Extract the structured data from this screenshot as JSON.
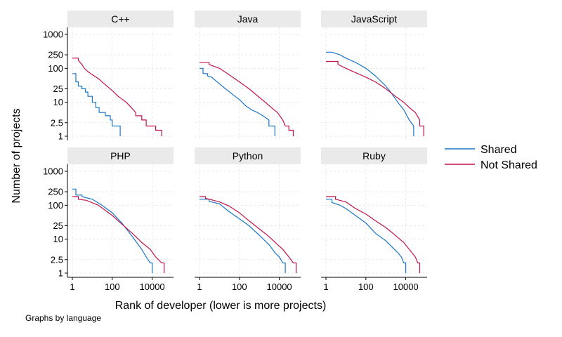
{
  "chart_data": {
    "type": "line",
    "x_scale": "log",
    "y_scale": "log",
    "xlim": [
      1,
      100000
    ],
    "ylim": [
      1,
      1000
    ],
    "xlabel": "Rank of developer (lower is more projects)",
    "ylabel": "Number of projects",
    "note": "Graphs by language",
    "x_ticks": [
      1,
      100,
      10000
    ],
    "x_tick_labels": [
      "1",
      "100",
      "10000"
    ],
    "y_ticks": [
      1,
      2.5,
      10,
      25,
      100,
      250,
      1000
    ],
    "y_tick_labels": [
      "1",
      "2.5",
      "10",
      "25",
      "100",
      "250",
      "1000"
    ],
    "legend": {
      "placement": "right",
      "entries": [
        {
          "label": "Shared",
          "color": "#1a76c8"
        },
        {
          "label": "Not Shared",
          "color": "#c0134a"
        }
      ]
    },
    "panels": [
      {
        "title": "C++",
        "series": [
          {
            "name": "Shared",
            "points": [
              [
                1,
                70
              ],
              [
                1.5,
                70
              ],
              [
                1.5,
                40
              ],
              [
                2,
                40
              ],
              [
                2,
                30
              ],
              [
                3,
                30
              ],
              [
                3,
                25
              ],
              [
                4.5,
                25
              ],
              [
                4.5,
                20
              ],
              [
                6,
                20
              ],
              [
                6,
                15
              ],
              [
                10,
                15
              ],
              [
                10,
                10
              ],
              [
                15,
                10
              ],
              [
                15,
                7
              ],
              [
                22,
                7
              ],
              [
                22,
                5
              ],
              [
                45,
                5
              ],
              [
                45,
                4
              ],
              [
                80,
                4
              ],
              [
                80,
                3
              ],
              [
                100,
                3
              ],
              [
                100,
                2
              ],
              [
                250,
                2
              ],
              [
                250,
                1
              ]
            ]
          },
          {
            "name": "Not Shared",
            "points": [
              [
                1,
                200
              ],
              [
                2,
                200
              ],
              [
                2,
                170
              ],
              [
                3,
                130
              ],
              [
                4,
                100
              ],
              [
                6,
                80
              ],
              [
                10,
                65
              ],
              [
                20,
                50
              ],
              [
                40,
                35
              ],
              [
                100,
                22
              ],
              [
                200,
                15
              ],
              [
                500,
                10
              ],
              [
                900,
                7
              ],
              [
                1500,
                5
              ],
              [
                1500,
                4
              ],
              [
                3000,
                4
              ],
              [
                3000,
                3
              ],
              [
                5000,
                3
              ],
              [
                5000,
                2
              ],
              [
                15000,
                2
              ],
              [
                15000,
                1.5
              ],
              [
                30000,
                1.5
              ],
              [
                30000,
                1
              ]
            ]
          }
        ]
      },
      {
        "title": "Java",
        "series": [
          {
            "name": "Shared",
            "points": [
              [
                1,
                100
              ],
              [
                1.5,
                100
              ],
              [
                1.5,
                70
              ],
              [
                2.5,
                70
              ],
              [
                2.5,
                60
              ],
              [
                4,
                55
              ],
              [
                6,
                45
              ],
              [
                10,
                35
              ],
              [
                20,
                25
              ],
              [
                40,
                18
              ],
              [
                100,
                12
              ],
              [
                200,
                8
              ],
              [
                400,
                6
              ],
              [
                800,
                5
              ],
              [
                1500,
                4
              ],
              [
                3000,
                3
              ],
              [
                3000,
                2
              ],
              [
                6000,
                2
              ],
              [
                6000,
                1
              ]
            ]
          },
          {
            "name": "Not Shared",
            "points": [
              [
                1,
                150
              ],
              [
                3,
                150
              ],
              [
                3,
                130
              ],
              [
                10,
                100
              ],
              [
                30,
                65
              ],
              [
                100,
                40
              ],
              [
                300,
                25
              ],
              [
                1000,
                14
              ],
              [
                2000,
                10
              ],
              [
                4000,
                7
              ],
              [
                8000,
                5
              ],
              [
                15000,
                3
              ],
              [
                20000,
                2
              ],
              [
                30000,
                2
              ],
              [
                30000,
                1.5
              ],
              [
                50000,
                1.5
              ],
              [
                50000,
                1
              ]
            ]
          }
        ]
      },
      {
        "title": "JavaScript",
        "series": [
          {
            "name": "Shared",
            "points": [
              [
                1,
                300
              ],
              [
                2,
                300
              ],
              [
                5,
                250
              ],
              [
                10,
                200
              ],
              [
                30,
                150
              ],
              [
                100,
                100
              ],
              [
                300,
                60
              ],
              [
                1000,
                30
              ],
              [
                2000,
                18
              ],
              [
                4000,
                10
              ],
              [
                8000,
                6
              ],
              [
                15000,
                3
              ],
              [
                25000,
                2
              ],
              [
                25000,
                1
              ]
            ]
          },
          {
            "name": "Not Shared",
            "points": [
              [
                1,
                160
              ],
              [
                4,
                160
              ],
              [
                4,
                130
              ],
              [
                10,
                100
              ],
              [
                30,
                75
              ],
              [
                100,
                55
              ],
              [
                300,
                40
              ],
              [
                1000,
                25
              ],
              [
                3000,
                15
              ],
              [
                8000,
                10
              ],
              [
                15000,
                7
              ],
              [
                30000,
                5
              ],
              [
                50000,
                3
              ],
              [
                50000,
                2
              ],
              [
                80000,
                2
              ],
              [
                80000,
                1
              ]
            ]
          }
        ]
      },
      {
        "title": "PHP",
        "series": [
          {
            "name": "Shared",
            "points": [
              [
                1,
                300
              ],
              [
                1.5,
                300
              ],
              [
                1.5,
                200
              ],
              [
                3,
                200
              ],
              [
                3,
                180
              ],
              [
                10,
                150
              ],
              [
                30,
                100
              ],
              [
                100,
                60
              ],
              [
                300,
                30
              ],
              [
                1000,
                12
              ],
              [
                3000,
                5
              ],
              [
                5000,
                3
              ],
              [
                8000,
                2
              ],
              [
                10000,
                2
              ],
              [
                10000,
                1
              ]
            ]
          },
          {
            "name": "Not Shared",
            "points": [
              [
                1,
                180
              ],
              [
                2,
                180
              ],
              [
                2,
                150
              ],
              [
                5,
                140
              ],
              [
                20,
                100
              ],
              [
                100,
                50
              ],
              [
                300,
                28
              ],
              [
                1000,
                15
              ],
              [
                3000,
                8
              ],
              [
                8000,
                5
              ],
              [
                15000,
                3
              ],
              [
                30000,
                2
              ],
              [
                40000,
                2
              ],
              [
                40000,
                1
              ]
            ]
          }
        ]
      },
      {
        "title": "Python",
        "series": [
          {
            "name": "Shared",
            "points": [
              [
                1,
                150
              ],
              [
                3,
                150
              ],
              [
                3,
                130
              ],
              [
                10,
                110
              ],
              [
                30,
                65
              ],
              [
                100,
                40
              ],
              [
                300,
                25
              ],
              [
                1000,
                13
              ],
              [
                3000,
                7
              ],
              [
                6000,
                4
              ],
              [
                10000,
                3
              ],
              [
                15000,
                2
              ],
              [
                20000,
                2
              ],
              [
                20000,
                1
              ]
            ]
          },
          {
            "name": "Not Shared",
            "points": [
              [
                1,
                180
              ],
              [
                2,
                180
              ],
              [
                2,
                160
              ],
              [
                5,
                140
              ],
              [
                10,
                125
              ],
              [
                30,
                95
              ],
              [
                100,
                60
              ],
              [
                300,
                35
              ],
              [
                1000,
                20
              ],
              [
                3000,
                12
              ],
              [
                8000,
                7
              ],
              [
                15000,
                5
              ],
              [
                30000,
                3
              ],
              [
                50000,
                2
              ],
              [
                70000,
                2
              ],
              [
                70000,
                1
              ]
            ]
          }
        ]
      },
      {
        "title": "Ruby",
        "series": [
          {
            "name": "Shared",
            "points": [
              [
                1,
                150
              ],
              [
                2,
                150
              ],
              [
                2,
                120
              ],
              [
                5,
                100
              ],
              [
                10,
                80
              ],
              [
                30,
                50
              ],
              [
                100,
                30
              ],
              [
                300,
                15
              ],
              [
                1000,
                9
              ],
              [
                2000,
                6
              ],
              [
                4000,
                4
              ],
              [
                6000,
                3
              ],
              [
                8000,
                2
              ],
              [
                10000,
                2
              ],
              [
                10000,
                1
              ]
            ]
          },
          {
            "name": "Not Shared",
            "points": [
              [
                1,
                180
              ],
              [
                3,
                180
              ],
              [
                3,
                150
              ],
              [
                10,
                125
              ],
              [
                30,
                80
              ],
              [
                100,
                55
              ],
              [
                300,
                35
              ],
              [
                1000,
                22
              ],
              [
                3000,
                13
              ],
              [
                8000,
                8
              ],
              [
                15000,
                5
              ],
              [
                30000,
                3
              ],
              [
                40000,
                2
              ],
              [
                50000,
                2
              ],
              [
                50000,
                1
              ]
            ]
          }
        ]
      }
    ]
  }
}
